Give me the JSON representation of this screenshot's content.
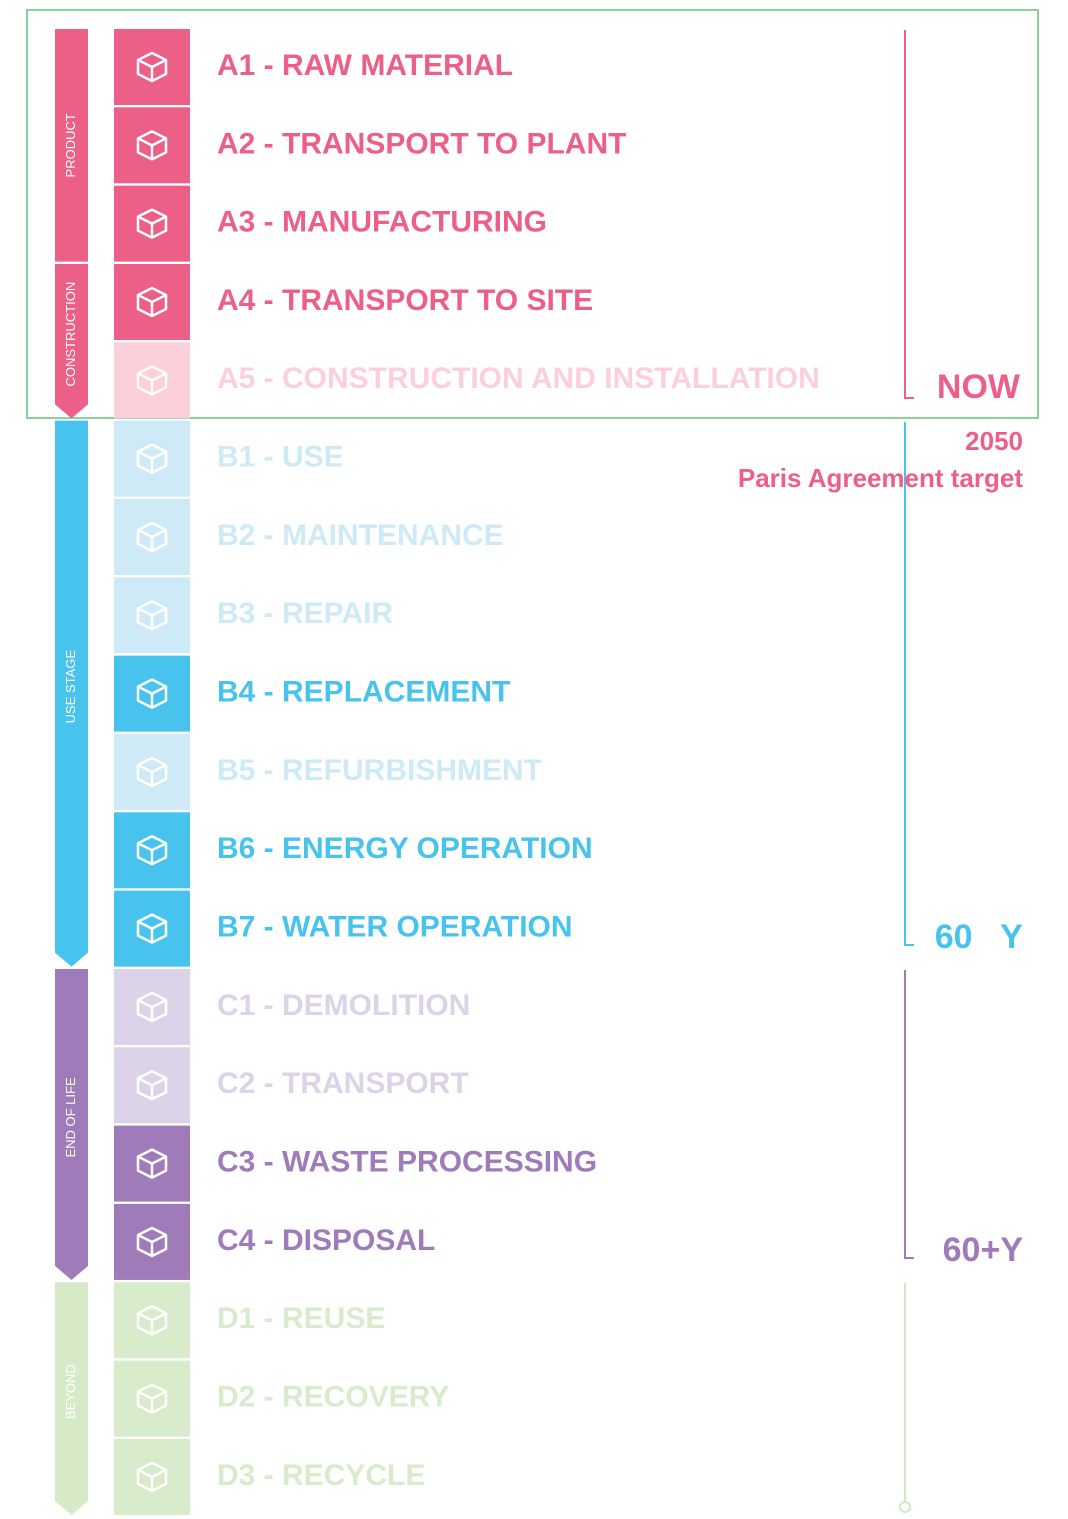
{
  "phases": [
    {
      "name": "PRODUCT"
    },
    {
      "name": "CONSTRUCTION"
    },
    {
      "name": "USE STAGE"
    },
    {
      "name": "END OF LIFE"
    },
    {
      "name": "BEYOND"
    }
  ],
  "stages": [
    {
      "label": "A1 - RAW MATERIAL",
      "active": true
    },
    {
      "label": "A2 - TRANSPORT TO PLANT",
      "active": true
    },
    {
      "label": "A3 - MANUFACTURING",
      "active": true
    },
    {
      "label": "A4 - TRANSPORT TO SITE",
      "active": true
    },
    {
      "label": "A5 - CONSTRUCTION AND INSTALLATION",
      "active": false
    },
    {
      "label": "B1 - USE",
      "active": false
    },
    {
      "label": "B2 - MAINTENANCE",
      "active": false
    },
    {
      "label": "B3 - REPAIR",
      "active": false
    },
    {
      "label": "B4 - REPLACEMENT",
      "active": true
    },
    {
      "label": "B5 - REFURBISHMENT",
      "active": false
    },
    {
      "label": "B6 - ENERGY OPERATION",
      "active": true
    },
    {
      "label": "B7 - WATER OPERATION",
      "active": true
    },
    {
      "label": "C1 - DEMOLITION",
      "active": false
    },
    {
      "label": "C2 - TRANSPORT",
      "active": false
    },
    {
      "label": "C3 - WASTE PROCESSING",
      "active": true
    },
    {
      "label": "C4 - DISPOSAL",
      "active": true
    },
    {
      "label": "D1 - REUSE",
      "active": false
    },
    {
      "label": "D2 - RECOVERY",
      "active": false
    },
    {
      "label": "D3 - RECYCLE",
      "active": false
    }
  ],
  "timeline": {
    "now": "NOW",
    "target_year": "2050",
    "target_name": "Paris Agreement target",
    "use_end": "60   Y",
    "life_end": "60+Y"
  }
}
